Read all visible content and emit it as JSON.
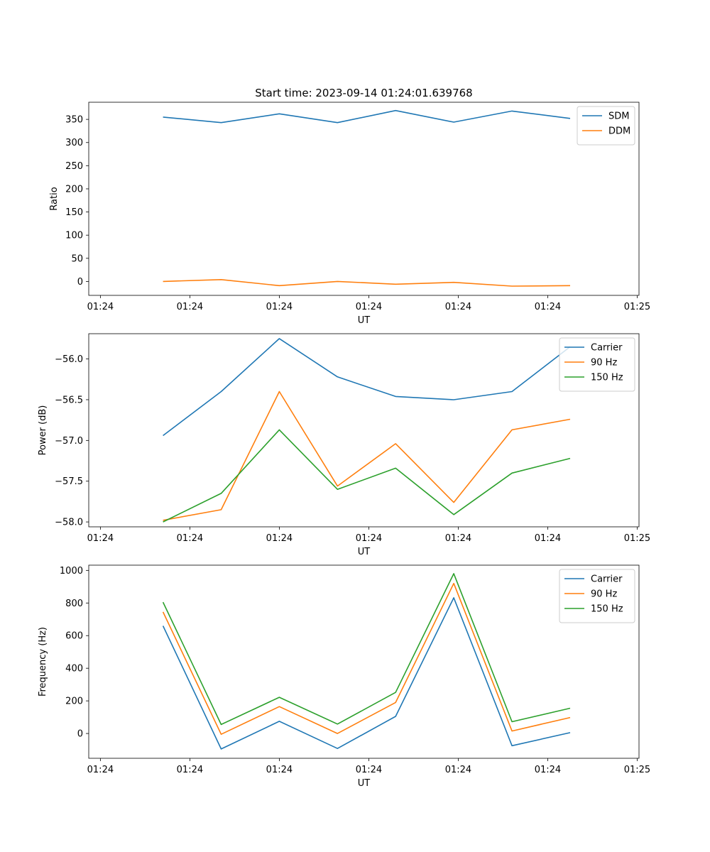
{
  "title": "Start time: 2023-09-14 01:24:01.639768",
  "chart_data": [
    {
      "type": "line",
      "xlabel": "UT",
      "ylabel": "Ratio",
      "x": [
        0.7,
        1.35,
        2.0,
        2.65,
        3.3,
        3.95,
        4.6,
        5.25
      ],
      "xticks": [
        0,
        1,
        2,
        3,
        4,
        5,
        6
      ],
      "xtick_labels": [
        "01:24",
        "01:24",
        "01:24",
        "01:24",
        "01:24",
        "01:24",
        "01:25"
      ],
      "xlim": [
        -0.13,
        6.02
      ],
      "yticks": [
        0,
        50,
        100,
        150,
        200,
        250,
        300,
        350
      ],
      "ytick_labels": [
        "0",
        "50",
        "100",
        "150",
        "200",
        "250",
        "300",
        "350"
      ],
      "ylim": [
        -30,
        387
      ],
      "legend_position": "top-right",
      "series": [
        {
          "name": "SDM",
          "color": "#1f77b4",
          "values": [
            355,
            343,
            362,
            343,
            369,
            344,
            368,
            352
          ]
        },
        {
          "name": "DDM",
          "color": "#ff7f0e",
          "values": [
            0,
            4,
            -9,
            0,
            -6,
            -2,
            -10,
            -9
          ]
        }
      ]
    },
    {
      "type": "line",
      "xlabel": "UT",
      "ylabel": "Power (dB)",
      "x": [
        0.7,
        1.35,
        2.0,
        2.65,
        3.3,
        3.95,
        4.6,
        5.25
      ],
      "xticks": [
        0,
        1,
        2,
        3,
        4,
        5,
        6
      ],
      "xtick_labels": [
        "01:24",
        "01:24",
        "01:24",
        "01:24",
        "01:24",
        "01:24",
        "01:25"
      ],
      "xlim": [
        -0.13,
        6.02
      ],
      "yticks": [
        -58.0,
        -57.5,
        -57.0,
        -56.5,
        -56.0
      ],
      "ytick_labels": [
        "−58.0",
        "−57.5",
        "−57.0",
        "−56.5",
        "−56.0"
      ],
      "ylim": [
        -58.06,
        -55.69
      ],
      "legend_position": "top-right",
      "series": [
        {
          "name": "Carrier",
          "color": "#1f77b4",
          "values": [
            -56.94,
            -56.4,
            -55.75,
            -56.22,
            -56.46,
            -56.5,
            -56.4,
            -55.85
          ]
        },
        {
          "name": "90 Hz",
          "color": "#ff7f0e",
          "values": [
            -57.98,
            -57.85,
            -56.4,
            -57.56,
            -57.04,
            -57.76,
            -56.87,
            -56.74
          ]
        },
        {
          "name": "150 Hz",
          "color": "#2ca02c",
          "values": [
            -58.0,
            -57.65,
            -56.87,
            -57.6,
            -57.34,
            -57.91,
            -57.4,
            -57.22
          ]
        }
      ]
    },
    {
      "type": "line",
      "xlabel": "UT",
      "ylabel": "Frequency (Hz)",
      "x": [
        0.7,
        1.35,
        2.0,
        2.65,
        3.3,
        3.95,
        4.6,
        5.25
      ],
      "xticks": [
        0,
        1,
        2,
        3,
        4,
        5,
        6
      ],
      "xtick_labels": [
        "01:24",
        "01:24",
        "01:24",
        "01:24",
        "01:24",
        "01:24",
        "01:25"
      ],
      "xlim": [
        -0.13,
        6.02
      ],
      "yticks": [
        0,
        200,
        400,
        600,
        800,
        1000
      ],
      "ytick_labels": [
        "0",
        "200",
        "400",
        "600",
        "800",
        "1000"
      ],
      "ylim": [
        -152,
        1032
      ],
      "legend_position": "top-right",
      "series": [
        {
          "name": "Carrier",
          "color": "#1f77b4",
          "values": [
            660,
            -95,
            75,
            -92,
            105,
            832,
            -75,
            5
          ]
        },
        {
          "name": "90 Hz",
          "color": "#ff7f0e",
          "values": [
            745,
            -5,
            165,
            0,
            190,
            920,
            15,
            98
          ]
        },
        {
          "name": "150 Hz",
          "color": "#2ca02c",
          "values": [
            805,
            55,
            222,
            58,
            252,
            980,
            72,
            155
          ]
        }
      ]
    }
  ]
}
